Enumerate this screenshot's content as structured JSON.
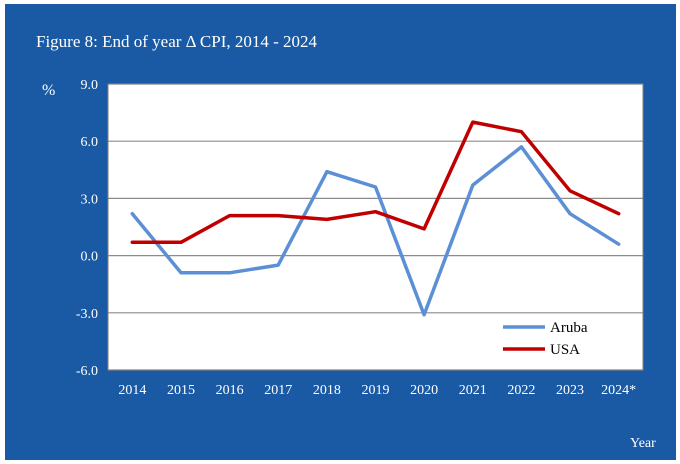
{
  "figure": {
    "title": "Figure 8: End of year Δ CPI, 2014 - 2024",
    "y_unit": "%",
    "x_unit": "Year"
  },
  "colors": {
    "background": "#1a5aa4",
    "plot_area": "#ffffff",
    "gridline": "#8c8c8c",
    "aruba": "#5b8fd6",
    "usa": "#c00000"
  },
  "chart_data": {
    "type": "line",
    "title": "Figure 8: End of year Δ CPI, 2014 - 2024",
    "xlabel": "Year",
    "ylabel": "%",
    "categories": [
      "2014",
      "2015",
      "2016",
      "2017",
      "2018",
      "2019",
      "2020",
      "2021",
      "2022",
      "2023",
      "2024*"
    ],
    "ylim": [
      -6,
      9
    ],
    "yticks": [
      9,
      6,
      3,
      0,
      -3,
      -6
    ],
    "ytick_labels": [
      "9.0",
      "6.0",
      "3.0",
      "0.0",
      "-3.0",
      "-6.0"
    ],
    "grid": true,
    "legend_position": "bottom-right",
    "series": [
      {
        "name": "Aruba",
        "color": "#5b8fd6",
        "values": [
          2.2,
          -0.9,
          -0.9,
          -0.5,
          4.4,
          3.6,
          -3.1,
          3.7,
          5.7,
          2.2,
          0.6
        ]
      },
      {
        "name": "USA",
        "color": "#c00000",
        "values": [
          0.7,
          0.7,
          2.1,
          2.1,
          1.9,
          2.3,
          1.4,
          7.0,
          6.5,
          3.4,
          2.2
        ]
      }
    ]
  }
}
